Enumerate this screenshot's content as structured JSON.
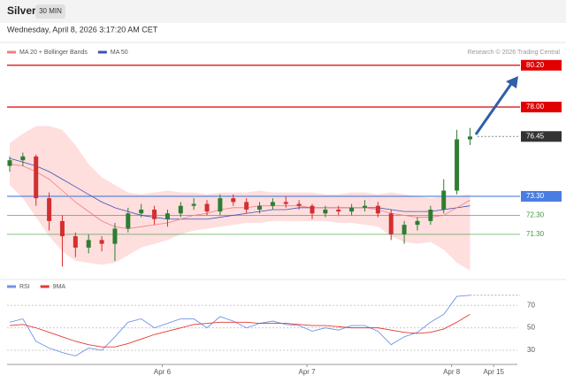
{
  "header": {
    "symbol": "Silver",
    "interval": "30 MIN",
    "timestamp": "Wednesday, April 8, 2026 3:17:20 AM CET"
  },
  "chart_data": [
    {
      "type": "candlestick",
      "source": "Research © 2026 Trading Central",
      "xlim": [
        -0.2,
        38.6
      ],
      "ylim": [
        69.2,
        81.4
      ],
      "up_color": "#2e7d32",
      "down_color": "#d32f2f",
      "open": [
        74.9,
        75.2,
        75.4,
        73.2,
        72.0,
        71.2,
        70.6,
        71.0,
        70.8,
        71.6,
        72.4,
        72.6,
        72.1,
        72.4,
        72.8,
        72.9,
        72.5,
        73.2,
        73.0,
        72.6,
        72.8,
        73.0,
        72.9,
        72.8,
        72.4,
        72.6,
        72.5,
        72.7,
        72.8,
        72.4,
        71.3,
        71.8,
        72.0,
        72.6,
        73.6,
        76.3
      ],
      "high": [
        75.4,
        75.6,
        75.5,
        73.5,
        72.3,
        71.4,
        71.3,
        71.2,
        71.9,
        72.7,
        72.9,
        72.8,
        72.6,
        73.0,
        73.2,
        73.1,
        73.4,
        73.4,
        73.2,
        73.0,
        73.2,
        73.3,
        73.1,
        72.9,
        72.8,
        72.8,
        72.9,
        73.1,
        73.0,
        72.6,
        72.0,
        72.2,
        72.8,
        74.2,
        76.8,
        76.9
      ],
      "low": [
        74.6,
        74.9,
        72.8,
        71.5,
        69.6,
        70.1,
        70.3,
        70.4,
        69.9,
        71.4,
        72.2,
        71.8,
        71.7,
        72.2,
        72.6,
        72.3,
        72.3,
        72.8,
        72.4,
        72.4,
        72.6,
        72.7,
        72.6,
        72.1,
        72.2,
        72.3,
        72.3,
        72.5,
        72.2,
        71.0,
        70.8,
        71.5,
        71.8,
        72.4,
        73.4,
        76.0
      ],
      "close": [
        75.2,
        75.4,
        73.2,
        72.0,
        71.2,
        70.6,
        71.0,
        70.8,
        71.6,
        72.4,
        72.6,
        72.1,
        72.4,
        72.8,
        72.9,
        72.5,
        73.2,
        73.0,
        72.6,
        72.8,
        73.0,
        72.9,
        72.8,
        72.4,
        72.6,
        72.5,
        72.7,
        72.8,
        72.4,
        71.3,
        71.8,
        72.0,
        72.6,
        73.6,
        76.3,
        76.45
      ],
      "series": [
        {
          "name": "MA 20 + Bollinger Bands",
          "color": "#f08080",
          "band_color": "#ffd6d6",
          "values": [
            75.0,
            74.9,
            74.6,
            74.2,
            73.6,
            73.0,
            72.5,
            72.0,
            71.7,
            71.6,
            71.7,
            71.8,
            71.9,
            72.1,
            72.3,
            72.4,
            72.6,
            72.7,
            72.7,
            72.8,
            72.8,
            72.8,
            72.8,
            72.7,
            72.7,
            72.7,
            72.7,
            72.7,
            72.6,
            72.4,
            72.3,
            72.2,
            72.2,
            72.3,
            72.7,
            73.1
          ],
          "upper": [
            76.1,
            76.6,
            77.0,
            77.0,
            76.8,
            76.0,
            75.0,
            74.3,
            73.9,
            73.5,
            73.4,
            73.5,
            73.6,
            73.5,
            73.5,
            73.4,
            73.5,
            73.5,
            73.5,
            73.6,
            73.5,
            73.5,
            73.5,
            73.5,
            73.4,
            73.4,
            73.5,
            73.5,
            73.4,
            73.5,
            73.4,
            73.3,
            73.2,
            73.3,
            73.3,
            73.4
          ],
          "lower": [
            73.9,
            73.2,
            72.2,
            71.2,
            70.4,
            69.9,
            69.8,
            69.7,
            69.8,
            70.2,
            70.6,
            70.8,
            71.0,
            71.3,
            71.5,
            71.6,
            71.7,
            71.8,
            71.9,
            71.9,
            72.0,
            72.0,
            72.0,
            72.0,
            72.0,
            71.9,
            71.9,
            71.8,
            71.7,
            71.2,
            70.9,
            70.8,
            70.9,
            70.5,
            69.8,
            69.4
          ]
        },
        {
          "name": "MA 50",
          "color": "#3f51b5",
          "values": [
            75.3,
            75.1,
            74.9,
            74.6,
            74.2,
            73.8,
            73.4,
            73.0,
            72.7,
            72.5,
            72.3,
            72.2,
            72.1,
            72.1,
            72.1,
            72.1,
            72.2,
            72.3,
            72.4,
            72.5,
            72.6,
            72.6,
            72.7,
            72.7,
            72.7,
            72.7,
            72.7,
            72.7,
            72.7,
            72.6,
            72.5,
            72.5,
            72.5,
            72.6,
            72.7,
            72.8
          ]
        }
      ],
      "levels": [
        {
          "value": 80.2,
          "label": "80.20",
          "color": "#e00000",
          "style": "box"
        },
        {
          "value": 78.0,
          "label": "78.00",
          "color": "#e00000",
          "style": "box"
        },
        {
          "value": 76.45,
          "label": "76.45",
          "color": "#333333",
          "style": "last"
        },
        {
          "value": 73.3,
          "label": "73.30",
          "color": "#4a7de0",
          "style": "box"
        },
        {
          "value": 72.3,
          "label": "72.30",
          "color": "#3a9a3a",
          "style": "text"
        },
        {
          "value": 71.3,
          "label": "71.30",
          "color": "#3a9a3a",
          "style": "text"
        }
      ]
    },
    {
      "type": "line",
      "xlim": [
        -0.2,
        38.6
      ],
      "ylim": [
        19,
        82
      ],
      "yticks": [
        70,
        50,
        30
      ],
      "grid": true,
      "xticks": [
        {
          "value": 11.6,
          "label": "Apr 6"
        },
        {
          "value": 22.6,
          "label": "Apr 7"
        },
        {
          "value": 33.6,
          "label": "Apr 8"
        },
        {
          "value": 36.8,
          "label": "Apr 15"
        }
      ],
      "series": [
        {
          "name": "RSI",
          "color": "#6f95e8",
          "values": [
            55,
            58,
            38,
            32,
            28,
            25,
            32,
            30,
            42,
            55,
            58,
            50,
            54,
            58,
            58,
            50,
            60,
            56,
            50,
            54,
            56,
            53,
            52,
            47,
            50,
            48,
            52,
            52,
            47,
            35,
            42,
            46,
            55,
            62,
            78,
            79
          ]
        },
        {
          "name": "9MA",
          "color": "#e53935",
          "values": [
            52,
            53,
            50,
            46,
            42,
            38,
            35,
            33,
            33,
            36,
            40,
            44,
            47,
            50,
            53,
            54,
            55,
            55,
            55,
            54,
            54,
            54,
            53,
            52,
            52,
            51,
            50,
            50,
            50,
            48,
            46,
            45,
            46,
            49,
            55,
            62
          ]
        }
      ]
    }
  ]
}
